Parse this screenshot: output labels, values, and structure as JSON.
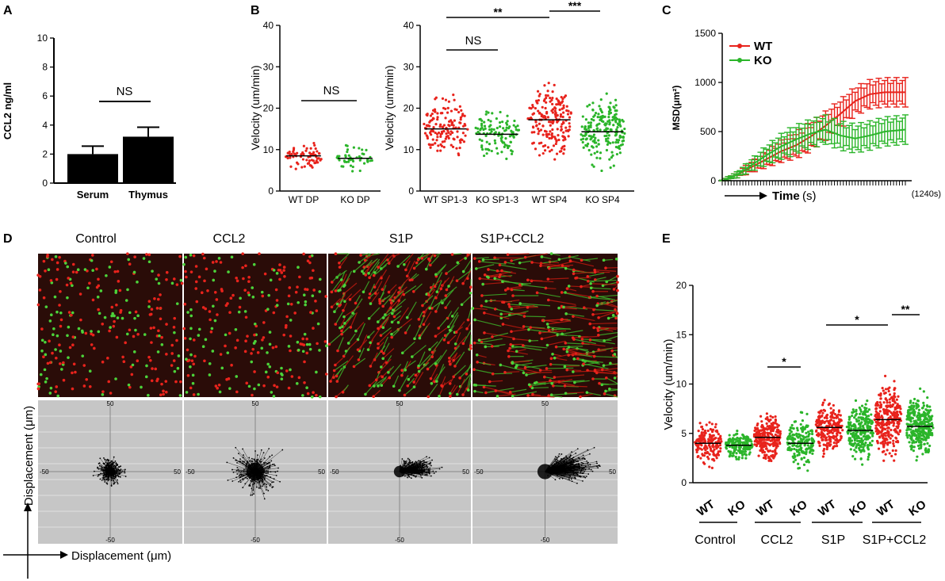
{
  "panels": {
    "A": {
      "letter": "A",
      "chart_data": {
        "type": "bar",
        "categories": [
          "Serum",
          "Thymus"
        ],
        "values": [
          2.0,
          3.2
        ],
        "errors": [
          0.55,
          0.65
        ],
        "ylabel": "CCL2 ng/ml",
        "ylim": [
          0,
          10
        ],
        "yticks": [
          "0",
          "2",
          "4",
          "6",
          "8",
          "10"
        ],
        "annotation": "NS"
      }
    },
    "B": {
      "letter": "B",
      "left": {
        "chart_data": {
          "type": "scatter",
          "categories": [
            "WT DP",
            "KO DP"
          ],
          "means": [
            8.5,
            7.9
          ],
          "colors": [
            "#e8231c",
            "#2bb52a"
          ],
          "counts": [
            70,
            45
          ],
          "spread": [
            [
              1,
              16
            ],
            [
              1,
              15
            ]
          ],
          "ylabel": "Velocity (um/min)",
          "ylim": [
            0,
            40
          ],
          "yticks": [
            "0",
            "10",
            "20",
            "30",
            "40"
          ],
          "annotation": "NS"
        }
      },
      "right": {
        "chart_data": {
          "type": "scatter",
          "categories": [
            "WT SP1-3",
            "KO SP1-3",
            "WT SP4",
            "KO SP4"
          ],
          "means": [
            15.0,
            13.7,
            17.2,
            14.3
          ],
          "colors": [
            "#e8231c",
            "#2bb52a",
            "#e8231c",
            "#2bb52a"
          ],
          "counts": [
            140,
            110,
            190,
            200
          ],
          "spread": [
            [
              2,
              32
            ],
            [
              2,
              27
            ],
            [
              1,
              40
            ],
            [
              1,
              36
            ]
          ],
          "ylabel": "Velocity (um/min)",
          "ylim": [
            0,
            40
          ],
          "yticks": [
            "0",
            "10",
            "20",
            "30",
            "40"
          ],
          "annotations": [
            "NS",
            "**",
            "***"
          ]
        }
      }
    },
    "C": {
      "letter": "C",
      "chart_data": {
        "type": "line",
        "ylabel": "MSD(μm²)",
        "ylim": [
          0,
          1500
        ],
        "yticks": [
          "0",
          "500",
          "1000",
          "1500"
        ],
        "xlabel_main": "Time",
        "xlabel_unit": "(s)",
        "x_end_label": "(1240s)",
        "x_max": 1240,
        "series": [
          {
            "name": "WT",
            "color": "#e8231c",
            "x": [
              0,
              100,
              200,
              300,
              400,
              500,
              600,
              700,
              800,
              900,
              1000,
              1100,
              1240
            ],
            "y": [
              0,
              60,
              140,
              220,
              300,
              360,
              450,
              560,
              680,
              810,
              880,
              900,
              900
            ],
            "err": 150
          },
          {
            "name": "KO",
            "color": "#2bb52a",
            "x": [
              0,
              100,
              200,
              300,
              400,
              500,
              600,
              700,
              800,
              900,
              1000,
              1100,
              1240
            ],
            "y": [
              0,
              60,
              160,
              260,
              350,
              420,
              480,
              520,
              460,
              430,
              460,
              500,
              520
            ],
            "err": 150
          }
        ]
      }
    },
    "D": {
      "letter": "D",
      "conditions": [
        "Control",
        "CCL2",
        "S1P",
        "S1P+CCL2"
      ],
      "track_axis_labels": [
        "50",
        "-50",
        "50",
        "-50"
      ],
      "plot_spread": [
        40,
        70,
        45,
        60
      ],
      "plot_bias": [
        0,
        0,
        25,
        38
      ],
      "y_axis_label": "Displacement (μm)",
      "x_axis_label": "Displacement (μm)"
    },
    "E": {
      "letter": "E",
      "chart_data": {
        "type": "scatter",
        "categories": [
          "WT",
          "KO",
          "WT",
          "KO",
          "WT",
          "KO",
          "WT",
          "KO"
        ],
        "groups": [
          "Control",
          "CCL2",
          "S1P",
          "S1P+CCL2"
        ],
        "means": [
          4.0,
          3.8,
          4.6,
          4.0,
          5.6,
          5.3,
          6.4,
          5.7
        ],
        "colors": [
          "#e8231c",
          "#2bb52a",
          "#e8231c",
          "#2bb52a",
          "#e8231c",
          "#2bb52a",
          "#e8231c",
          "#2bb52a"
        ],
        "counts": [
          170,
          160,
          240,
          180,
          220,
          260,
          290,
          300
        ],
        "spread": [
          [
            0.2,
            9.2
          ],
          [
            0.3,
            6.3
          ],
          [
            0.1,
            10
          ],
          [
            0.1,
            11
          ],
          [
            0.8,
            11
          ],
          [
            0.3,
            13
          ],
          [
            0,
            15.2
          ],
          [
            0,
            13
          ]
        ],
        "ylabel": "Velocity (um/min)",
        "ylim": [
          0,
          20
        ],
        "yticks": [
          "0",
          "5",
          "10",
          "15",
          "20"
        ],
        "annotations": [
          "*",
          "*",
          "**"
        ]
      }
    }
  }
}
